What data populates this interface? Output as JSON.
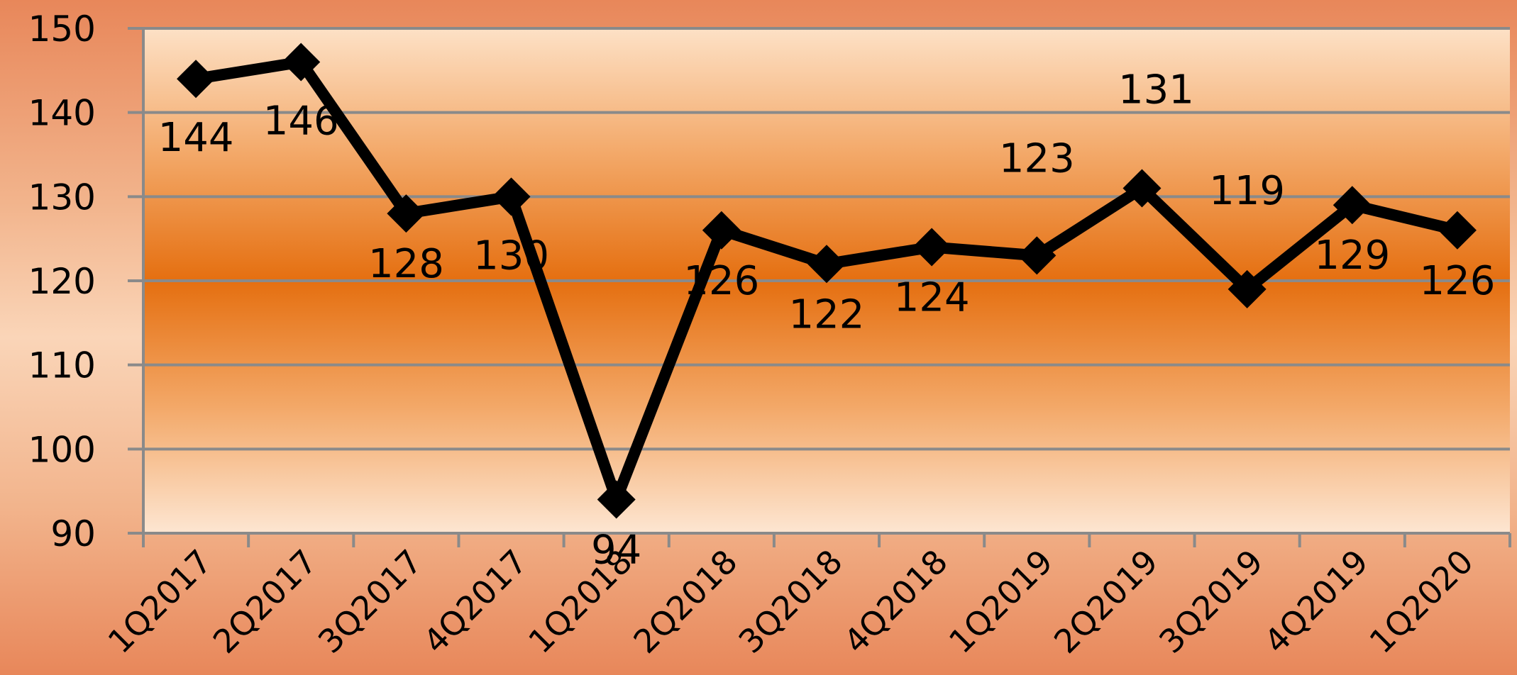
{
  "chart_data": {
    "type": "line",
    "categories": [
      "1Q2017",
      "2Q2017",
      "3Q2017",
      "4Q2017",
      "1Q2018",
      "2Q2018",
      "3Q2018",
      "4Q2018",
      "1Q2019",
      "2Q2019",
      "3Q2019",
      "4Q2019",
      "1Q2020"
    ],
    "series": [
      {
        "values": [
          144,
          146,
          128,
          130,
          94,
          126,
          122,
          124,
          123,
          131,
          119,
          129,
          126
        ]
      }
    ],
    "data_labels": [
      "144",
      "146",
      "128",
      "130",
      "94",
      "126",
      "122",
      "124",
      "123",
      "131",
      "119",
      "129",
      "126"
    ],
    "ylim": [
      90,
      150
    ],
    "yticks": [
      90,
      100,
      110,
      120,
      130,
      140,
      150
    ],
    "ytick_labels": [
      "90",
      "100",
      "110",
      "120",
      "130",
      "140",
      "150"
    ],
    "grid": true,
    "legend": "none",
    "colors": {
      "line": "#000000",
      "grid": "#8a8a8a",
      "plot_top": "#fde1c6",
      "plot_mid": "#e56f10",
      "plot_bottom": "#fde6d2",
      "text": "#000000"
    },
    "marker": "diamond"
  }
}
